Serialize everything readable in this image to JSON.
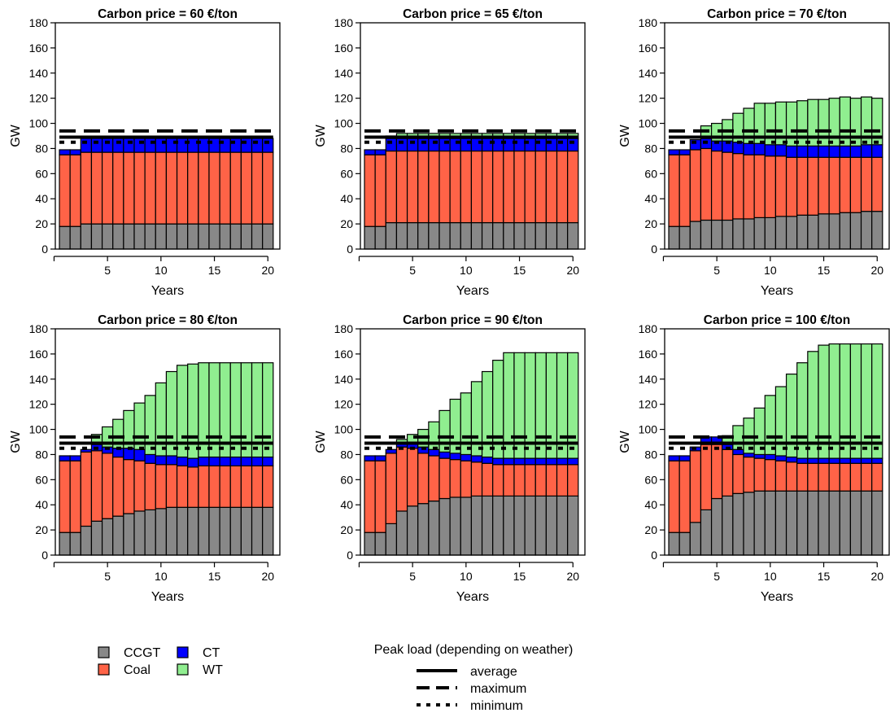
{
  "colors": {
    "CCGT": "#888888",
    "Coal": "#FF6347",
    "CT": "#0000FF",
    "WT": "#90EE90"
  },
  "legend": {
    "technologies": [
      {
        "key": "CCGT",
        "label": "CCGT"
      },
      {
        "key": "Coal",
        "label": "Coal"
      },
      {
        "key": "CT",
        "label": "CT"
      },
      {
        "key": "WT",
        "label": "WT"
      }
    ],
    "peak_title": "Peak load (depending on weather)",
    "peak_items": [
      {
        "label": "average",
        "style": "solid"
      },
      {
        "label": "maximum",
        "style": "dashed"
      },
      {
        "label": "minimum",
        "style": "dotted"
      }
    ]
  },
  "chart_data": [
    {
      "type": "bar",
      "stacked": true,
      "title": "Carbon price = 60 €/ton",
      "xlabel": "Years",
      "ylabel": "GW",
      "xticks": [
        5,
        10,
        15,
        20
      ],
      "ylim": [
        0,
        180
      ],
      "yticks": [
        0,
        20,
        40,
        60,
        80,
        100,
        120,
        140,
        160,
        180
      ],
      "peak_load": {
        "average": 89,
        "maximum": 94,
        "minimum": 85
      },
      "x": [
        1,
        2,
        3,
        4,
        5,
        6,
        7,
        8,
        9,
        10,
        11,
        12,
        13,
        14,
        15,
        16,
        17,
        18,
        19,
        20
      ],
      "series": [
        {
          "name": "CCGT",
          "values": [
            18,
            18,
            20,
            20,
            20,
            20,
            20,
            20,
            20,
            20,
            20,
            20,
            20,
            20,
            20,
            20,
            20,
            20,
            20,
            20
          ]
        },
        {
          "name": "Coal",
          "values": [
            57,
            57,
            57,
            57,
            57,
            57,
            57,
            57,
            57,
            57,
            57,
            57,
            57,
            57,
            57,
            57,
            57,
            57,
            57,
            57
          ]
        },
        {
          "name": "CT",
          "values": [
            4,
            4,
            11,
            11,
            11,
            11,
            11,
            11,
            11,
            11,
            11,
            11,
            11,
            11,
            11,
            11,
            11,
            11,
            11,
            11
          ]
        },
        {
          "name": "WT",
          "values": [
            0,
            0,
            0,
            0,
            0,
            0,
            0,
            0,
            0,
            0,
            0,
            0,
            0,
            0,
            0,
            0,
            0,
            0,
            0,
            0
          ]
        }
      ]
    },
    {
      "type": "bar",
      "stacked": true,
      "title": "Carbon price = 65 €/ton",
      "xlabel": "Years",
      "ylabel": "GW",
      "xticks": [
        5,
        10,
        15,
        20
      ],
      "ylim": [
        0,
        180
      ],
      "yticks": [
        0,
        20,
        40,
        60,
        80,
        100,
        120,
        140,
        160,
        180
      ],
      "peak_load": {
        "average": 89,
        "maximum": 94,
        "minimum": 85
      },
      "x": [
        1,
        2,
        3,
        4,
        5,
        6,
        7,
        8,
        9,
        10,
        11,
        12,
        13,
        14,
        15,
        16,
        17,
        18,
        19,
        20
      ],
      "series": [
        {
          "name": "CCGT",
          "values": [
            18,
            18,
            21,
            21,
            21,
            21,
            21,
            21,
            21,
            21,
            21,
            21,
            21,
            21,
            21,
            21,
            21,
            21,
            21,
            21
          ]
        },
        {
          "name": "Coal",
          "values": [
            57,
            57,
            57,
            57,
            57,
            57,
            57,
            57,
            57,
            57,
            57,
            57,
            57,
            57,
            57,
            57,
            57,
            57,
            57,
            57
          ]
        },
        {
          "name": "CT",
          "values": [
            4,
            4,
            10,
            10,
            10,
            10,
            10,
            10,
            10,
            10,
            10,
            10,
            10,
            10,
            10,
            10,
            10,
            10,
            10,
            10
          ]
        },
        {
          "name": "WT",
          "values": [
            0,
            0,
            2,
            4,
            4,
            4,
            4,
            4,
            4,
            4,
            4,
            4,
            4,
            4,
            4,
            4,
            4,
            4,
            4,
            4
          ]
        }
      ]
    },
    {
      "type": "bar",
      "stacked": true,
      "title": "Carbon price = 70 €/ton",
      "xlabel": "Years",
      "ylabel": "GW",
      "xticks": [
        5,
        10,
        15,
        20
      ],
      "ylim": [
        0,
        180
      ],
      "yticks": [
        0,
        20,
        40,
        60,
        80,
        100,
        120,
        140,
        160,
        180
      ],
      "peak_load": {
        "average": 89,
        "maximum": 94,
        "minimum": 85
      },
      "x": [
        1,
        2,
        3,
        4,
        5,
        6,
        7,
        8,
        9,
        10,
        11,
        12,
        13,
        14,
        15,
        16,
        17,
        18,
        19,
        20
      ],
      "series": [
        {
          "name": "CCGT",
          "values": [
            18,
            18,
            22,
            23,
            23,
            23,
            24,
            24,
            25,
            25,
            26,
            26,
            27,
            27,
            28,
            28,
            29,
            29,
            30,
            30
          ]
        },
        {
          "name": "Coal",
          "values": [
            57,
            57,
            57,
            57,
            55,
            54,
            52,
            51,
            50,
            49,
            48,
            47,
            46,
            46,
            45,
            45,
            44,
            44,
            43,
            43
          ]
        },
        {
          "name": "CT",
          "values": [
            4,
            4,
            8,
            8,
            8,
            9,
            9,
            9,
            9,
            9,
            9,
            9,
            9,
            9,
            9,
            9,
            9,
            9,
            10,
            10
          ]
        },
        {
          "name": "WT",
          "values": [
            0,
            0,
            0,
            10,
            14,
            17,
            23,
            28,
            32,
            33,
            34,
            35,
            36,
            37,
            37,
            38,
            39,
            38,
            38,
            37
          ]
        }
      ]
    },
    {
      "type": "bar",
      "stacked": true,
      "title": "Carbon price = 80 €/ton",
      "xlabel": "Years",
      "ylabel": "GW",
      "xticks": [
        5,
        10,
        15,
        20
      ],
      "ylim": [
        0,
        180
      ],
      "yticks": [
        0,
        20,
        40,
        60,
        80,
        100,
        120,
        140,
        160,
        180
      ],
      "peak_load": {
        "average": 89,
        "maximum": 94,
        "minimum": 85
      },
      "x": [
        1,
        2,
        3,
        4,
        5,
        6,
        7,
        8,
        9,
        10,
        11,
        12,
        13,
        14,
        15,
        16,
        17,
        18,
        19,
        20
      ],
      "series": [
        {
          "name": "CCGT",
          "values": [
            18,
            18,
            23,
            27,
            29,
            31,
            33,
            35,
            36,
            37,
            38,
            38,
            38,
            38,
            38,
            38,
            38,
            38,
            38,
            38
          ]
        },
        {
          "name": "Coal",
          "values": [
            57,
            57,
            59,
            56,
            52,
            47,
            43,
            40,
            37,
            35,
            34,
            33,
            32,
            33,
            33,
            33,
            33,
            33,
            33,
            33
          ]
        },
        {
          "name": "CT",
          "values": [
            4,
            4,
            2,
            5,
            5,
            7,
            9,
            9,
            7,
            7,
            7,
            7,
            7,
            7,
            7,
            7,
            7,
            7,
            7,
            7
          ]
        },
        {
          "name": "WT",
          "values": [
            0,
            0,
            0,
            8,
            16,
            23,
            30,
            37,
            47,
            58,
            67,
            73,
            75,
            75,
            75,
            75,
            75,
            75,
            75,
            75
          ]
        }
      ]
    },
    {
      "type": "bar",
      "stacked": true,
      "title": "Carbon price = 90 €/ton",
      "xlabel": "Years",
      "ylabel": "GW",
      "xticks": [
        5,
        10,
        15,
        20
      ],
      "ylim": [
        0,
        180
      ],
      "yticks": [
        0,
        20,
        40,
        60,
        80,
        100,
        120,
        140,
        160,
        180
      ],
      "peak_load": {
        "average": 89,
        "maximum": 94,
        "minimum": 85
      },
      "x": [
        1,
        2,
        3,
        4,
        5,
        6,
        7,
        8,
        9,
        10,
        11,
        12,
        13,
        14,
        15,
        16,
        17,
        18,
        19,
        20
      ],
      "series": [
        {
          "name": "CCGT",
          "values": [
            18,
            18,
            25,
            35,
            39,
            41,
            43,
            45,
            46,
            46,
            47,
            47,
            47,
            47,
            47,
            47,
            47,
            47,
            47,
            47
          ]
        },
        {
          "name": "Coal",
          "values": [
            57,
            57,
            56,
            51,
            46,
            40,
            36,
            32,
            30,
            29,
            27,
            26,
            25,
            25,
            25,
            25,
            25,
            25,
            25,
            25
          ]
        },
        {
          "name": "CT",
          "values": [
            4,
            4,
            3,
            3,
            4,
            5,
            5,
            5,
            5,
            5,
            5,
            5,
            5,
            5,
            5,
            5,
            5,
            5,
            5,
            5
          ]
        },
        {
          "name": "WT",
          "values": [
            0,
            0,
            0,
            3,
            7,
            14,
            22,
            33,
            43,
            49,
            59,
            68,
            78,
            84,
            84,
            84,
            84,
            84,
            84,
            84
          ]
        }
      ]
    },
    {
      "type": "bar",
      "stacked": true,
      "title": "Carbon price = 100 €/ton",
      "xlabel": "Years",
      "ylabel": "GW",
      "xticks": [
        5,
        10,
        15,
        20
      ],
      "ylim": [
        0,
        180
      ],
      "yticks": [
        0,
        20,
        40,
        60,
        80,
        100,
        120,
        140,
        160,
        180
      ],
      "peak_load": {
        "average": 89,
        "maximum": 94,
        "minimum": 85
      },
      "x": [
        1,
        2,
        3,
        4,
        5,
        6,
        7,
        8,
        9,
        10,
        11,
        12,
        13,
        14,
        15,
        16,
        17,
        18,
        19,
        20
      ],
      "series": [
        {
          "name": "CCGT",
          "values": [
            18,
            18,
            26,
            36,
            45,
            47,
            49,
            50,
            51,
            51,
            51,
            51,
            51,
            51,
            51,
            51,
            51,
            51,
            51,
            51
          ]
        },
        {
          "name": "Coal",
          "values": [
            57,
            57,
            57,
            52,
            43,
            37,
            31,
            28,
            26,
            25,
            24,
            23,
            22,
            22,
            22,
            22,
            22,
            22,
            22,
            22
          ]
        },
        {
          "name": "CT",
          "values": [
            4,
            4,
            3,
            6,
            6,
            4,
            4,
            3,
            3,
            4,
            4,
            4,
            4,
            4,
            4,
            4,
            4,
            4,
            4,
            4
          ]
        },
        {
          "name": "WT",
          "values": [
            0,
            0,
            0,
            0,
            0,
            7,
            19,
            28,
            37,
            47,
            55,
            66,
            76,
            85,
            90,
            91,
            91,
            91,
            91,
            91
          ]
        }
      ]
    }
  ]
}
